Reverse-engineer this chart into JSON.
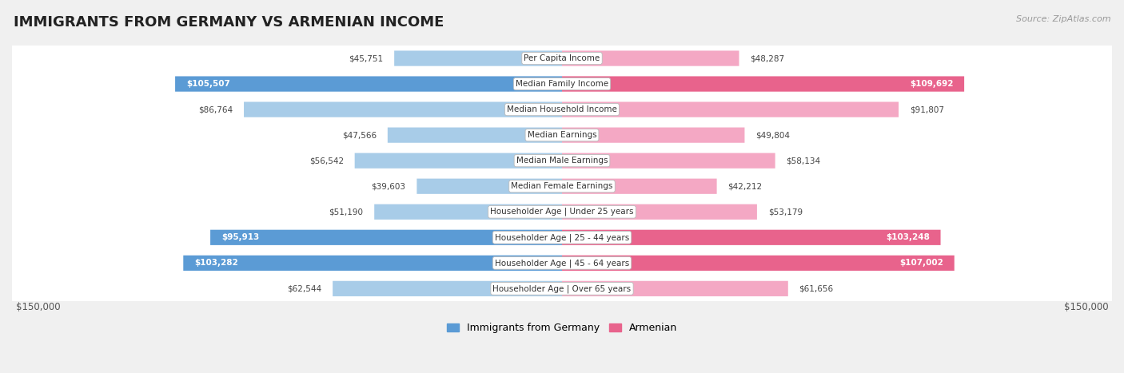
{
  "title": "IMMIGRANTS FROM GERMANY VS ARMENIAN INCOME",
  "source": "Source: ZipAtlas.com",
  "categories": [
    "Per Capita Income",
    "Median Family Income",
    "Median Household Income",
    "Median Earnings",
    "Median Male Earnings",
    "Median Female Earnings",
    "Householder Age | Under 25 years",
    "Householder Age | 25 - 44 years",
    "Householder Age | 45 - 64 years",
    "Householder Age | Over 65 years"
  ],
  "germany_values": [
    45751,
    105507,
    86764,
    47566,
    56542,
    39603,
    51190,
    95913,
    103282,
    62544
  ],
  "armenian_values": [
    48287,
    109692,
    91807,
    49804,
    58134,
    42212,
    53179,
    103248,
    107002,
    61656
  ],
  "germany_labels": [
    "$45,751",
    "$105,507",
    "$86,764",
    "$47,566",
    "$56,542",
    "$39,603",
    "$51,190",
    "$95,913",
    "$103,282",
    "$62,544"
  ],
  "armenian_labels": [
    "$48,287",
    "$109,692",
    "$91,807",
    "$49,804",
    "$58,134",
    "$42,212",
    "$53,179",
    "$103,248",
    "$107,002",
    "$61,656"
  ],
  "max_value": 150000,
  "germany_bar_light": "#A8CCE8",
  "germany_bar_dark": "#5B9BD5",
  "armenian_bar_light": "#F4A8C4",
  "armenian_bar_dark": "#E8638C",
  "background_color": "#f0f0f0",
  "row_bg_color": "#ffffff",
  "row_border_color": "#cccccc",
  "label_inside_threshold": 93000,
  "legend_germany": "Immigrants from Germany",
  "legend_armenian": "Armenian",
  "xlabel_left": "$150,000",
  "xlabel_right": "$150,000",
  "title_fontsize": 13,
  "label_fontsize": 7.5,
  "cat_fontsize": 7.5
}
